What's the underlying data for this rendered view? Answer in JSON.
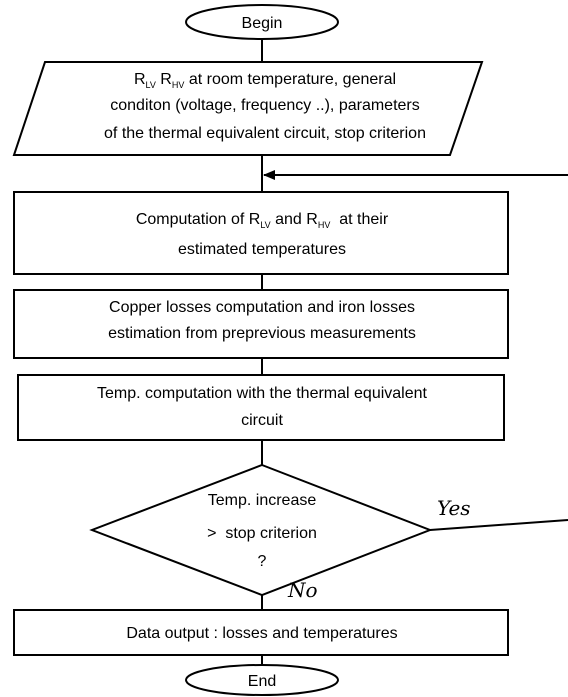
{
  "nodes": [
    {
      "lines": [
        [
          {
            "text": "Begin"
          }
        ]
      ]
    },
    {
      "lines": [
        [
          {
            "text": "R"
          },
          {
            "sub": "LV"
          },
          {
            "text": " R"
          },
          {
            "sub": "HV"
          },
          {
            "text": " at room temperature, general"
          }
        ],
        [
          {
            "text": "conditon (voltage, frequency ..), parameters"
          }
        ],
        [
          {
            "text": "of the thermal equivalent circuit, stop criterion"
          }
        ]
      ]
    },
    {
      "lines": [
        [
          {
            "text": "Computation of R"
          },
          {
            "sub": "LV"
          },
          {
            "text": " and R"
          },
          {
            "sub": "HV"
          },
          {
            "text": "  at their"
          }
        ],
        [
          {
            "text": "estimated temperatures"
          }
        ]
      ]
    },
    {
      "lines": [
        [
          {
            "text": "Copper losses computation and iron losses"
          }
        ],
        [
          {
            "text": "estimation from preprevious measurements"
          }
        ]
      ]
    },
    {
      "lines": [
        [
          {
            "text": "Temp. computation with the thermal equivalent"
          }
        ],
        [
          {
            "text": "circuit"
          }
        ]
      ]
    },
    {
      "lines": [
        [
          {
            "text": "Temp. increase"
          }
        ],
        [
          {
            "text": ">  stop criterion"
          }
        ],
        [
          {
            "text": "?"
          }
        ]
      ]
    },
    {
      "lines": [
        [
          {
            "text": "Data output : losses and temperatures"
          }
        ]
      ]
    },
    {
      "lines": [
        [
          {
            "text": "End"
          }
        ]
      ]
    }
  ],
  "edges": {
    "yes": "Yes",
    "no": "No"
  }
}
